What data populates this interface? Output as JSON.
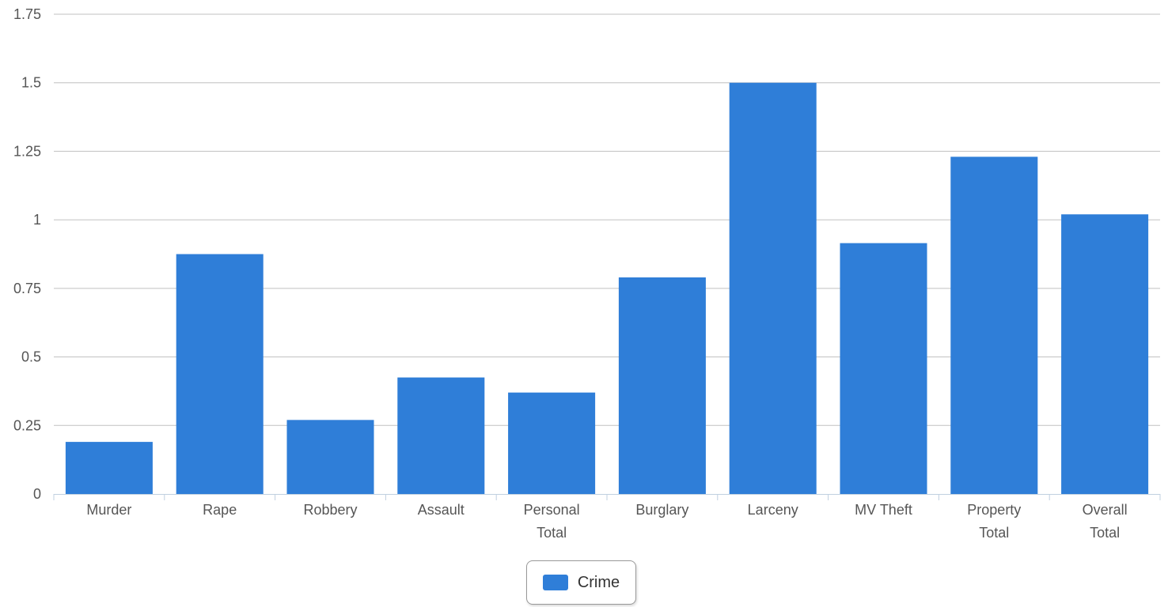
{
  "chart_data": {
    "type": "bar",
    "categories": [
      [
        "Murder"
      ],
      [
        "Rape"
      ],
      [
        "Robbery"
      ],
      [
        "Assault"
      ],
      [
        "Personal",
        "Total"
      ],
      [
        "Burglary"
      ],
      [
        "Larceny"
      ],
      [
        "MV Theft"
      ],
      [
        "Property",
        "Total"
      ],
      [
        "Overall",
        "Total"
      ]
    ],
    "series": [
      {
        "name": "Crime",
        "color": "#2f7ed8",
        "values": [
          0.19,
          0.875,
          0.27,
          0.425,
          0.37,
          0.79,
          1.5,
          0.915,
          1.23,
          1.02
        ]
      }
    ],
    "ylim": [
      0,
      1.75
    ],
    "yticks": [
      "0",
      "0.25",
      "0.5",
      "0.75",
      "1",
      "1.25",
      "1.5",
      "1.75"
    ],
    "ytick_values": [
      0,
      0.25,
      0.5,
      0.75,
      1,
      1.25,
      1.5,
      1.75
    ],
    "title": "",
    "xlabel": "",
    "ylabel": "",
    "grid": true,
    "legend_position": "bottom-center"
  },
  "legend": {
    "label": "Crime",
    "color": "#2f7ed8"
  }
}
